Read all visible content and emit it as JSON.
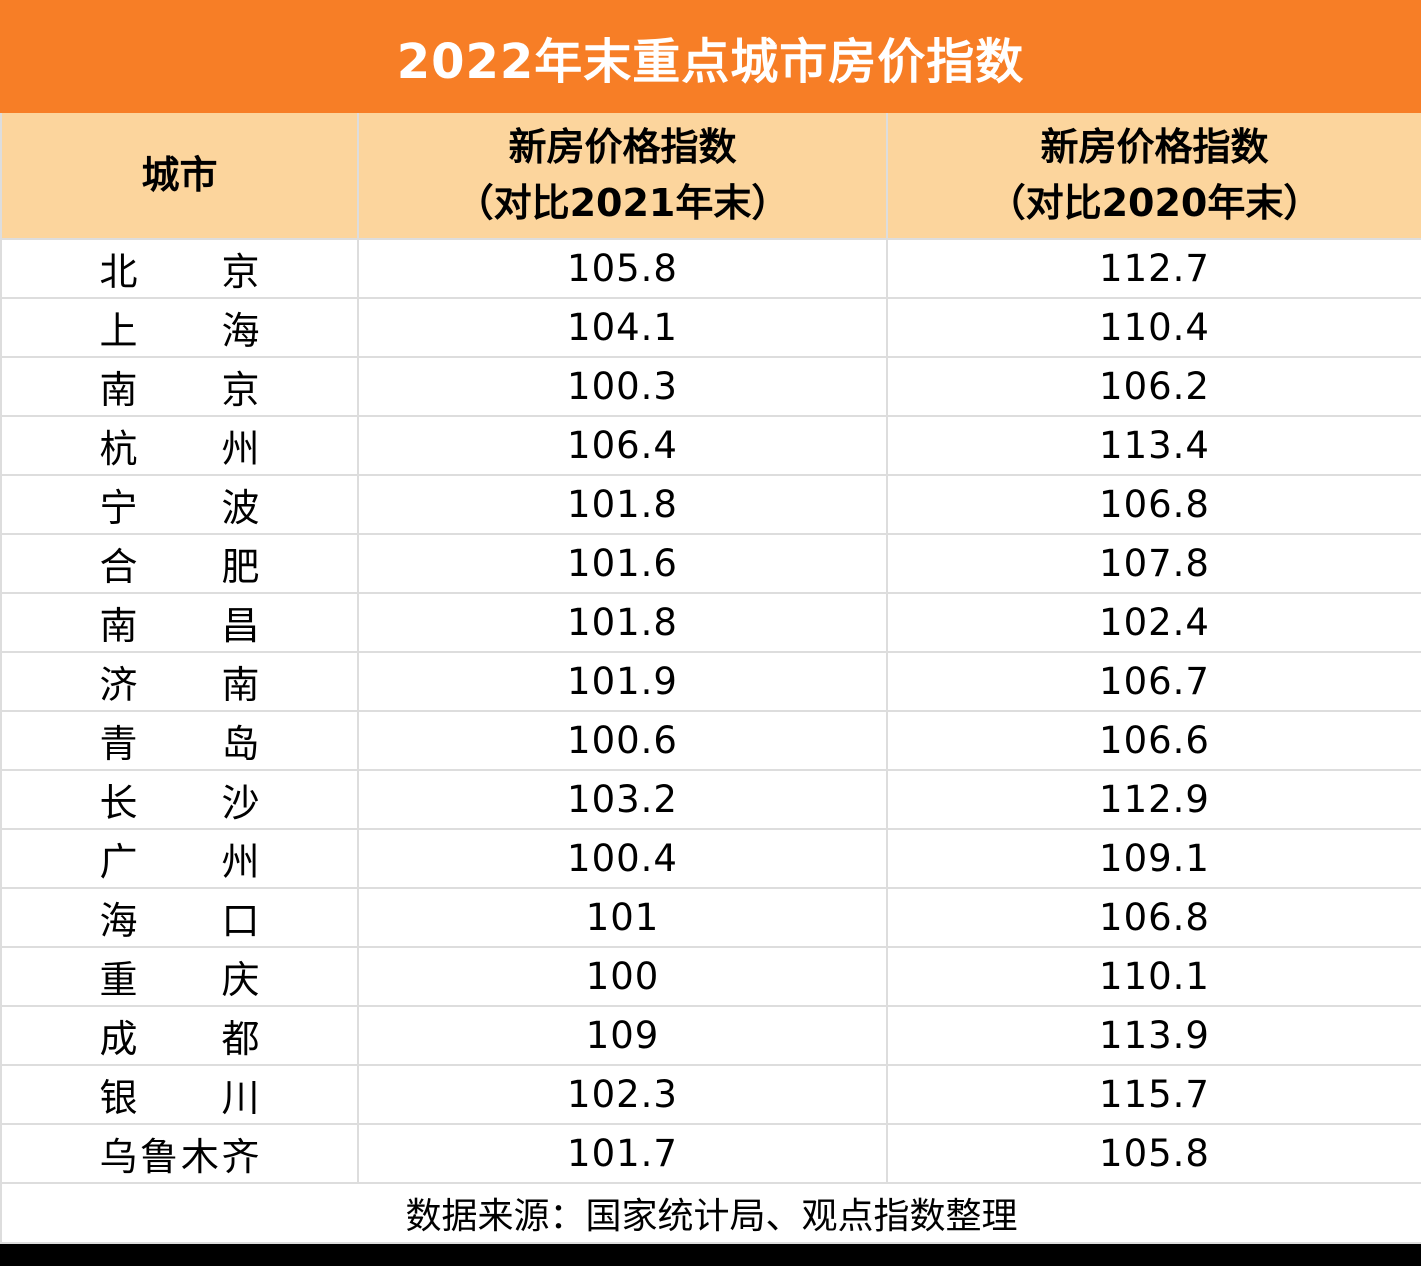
{
  "title": "2022年末重点城市房价指数",
  "colors": {
    "title_bg": "#f77e26",
    "title_text": "#ffffff",
    "header_bg": "#fcd59d",
    "grid_border": "#dddddd",
    "body_text": "#000000",
    "bottom_bar": "#000000"
  },
  "table": {
    "headers": [
      {
        "line1": "城市",
        "line2": ""
      },
      {
        "line1": "新房价格指数",
        "line2": "（对比2021年末）"
      },
      {
        "line1": "新房价格指数",
        "line2": "（对比2020年末）"
      }
    ],
    "rows": [
      {
        "city": "北京",
        "vs2021": "105.8",
        "vs2020": "112.7"
      },
      {
        "city": "上海",
        "vs2021": "104.1",
        "vs2020": "110.4"
      },
      {
        "city": "南京",
        "vs2021": "100.3",
        "vs2020": "106.2"
      },
      {
        "city": "杭州",
        "vs2021": "106.4",
        "vs2020": "113.4"
      },
      {
        "city": "宁波",
        "vs2021": "101.8",
        "vs2020": "106.8"
      },
      {
        "city": "合肥",
        "vs2021": "101.6",
        "vs2020": "107.8"
      },
      {
        "city": "南昌",
        "vs2021": "101.8",
        "vs2020": "102.4"
      },
      {
        "city": "济南",
        "vs2021": "101.9",
        "vs2020": "106.7"
      },
      {
        "city": "青岛",
        "vs2021": "100.6",
        "vs2020": "106.6"
      },
      {
        "city": "长沙",
        "vs2021": "103.2",
        "vs2020": "112.9"
      },
      {
        "city": "广州",
        "vs2021": "100.4",
        "vs2020": "109.1"
      },
      {
        "city": "海口",
        "vs2021": "101",
        "vs2020": "106.8"
      },
      {
        "city": "重庆",
        "vs2021": "100",
        "vs2020": "110.1"
      },
      {
        "city": "成都",
        "vs2021": "109",
        "vs2020": "113.9"
      },
      {
        "city": "银川",
        "vs2021": "102.3",
        "vs2020": "115.7"
      },
      {
        "city": "乌鲁木齐",
        "vs2021": "101.7",
        "vs2020": "105.8"
      }
    ]
  },
  "footer": {
    "source": "数据来源：国家统计局、观点指数整理"
  },
  "chart_data": {
    "type": "table",
    "title": "2022年末重点城市房价指数",
    "columns": [
      "城市",
      "新房价格指数（对比2021年末）",
      "新房价格指数（对比2020年末）"
    ],
    "rows": [
      [
        "北京",
        105.8,
        112.7
      ],
      [
        "上海",
        104.1,
        110.4
      ],
      [
        "南京",
        100.3,
        106.2
      ],
      [
        "杭州",
        106.4,
        113.4
      ],
      [
        "宁波",
        101.8,
        106.8
      ],
      [
        "合肥",
        101.6,
        107.8
      ],
      [
        "南昌",
        101.8,
        102.4
      ],
      [
        "济南",
        101.9,
        106.7
      ],
      [
        "青岛",
        100.6,
        106.6
      ],
      [
        "长沙",
        103.2,
        112.9
      ],
      [
        "广州",
        100.4,
        109.1
      ],
      [
        "海口",
        101,
        106.8
      ],
      [
        "重庆",
        100,
        110.1
      ],
      [
        "成都",
        109,
        113.9
      ],
      [
        "银川",
        102.3,
        115.7
      ],
      [
        "乌鲁木齐",
        101.7,
        105.8
      ]
    ],
    "source_note": "数据来源：国家统计局、观点指数整理"
  }
}
